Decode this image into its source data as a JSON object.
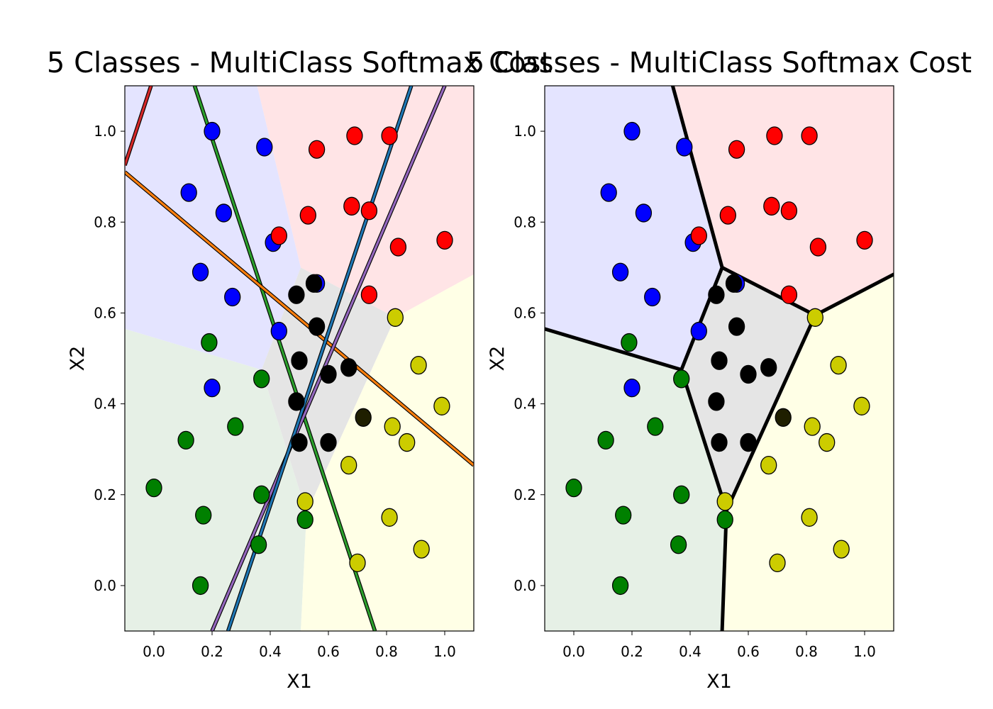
{
  "chart_data": [
    {
      "type": "scatter",
      "title": "5 Classes - MultiClass Softmax Cost",
      "xlabel": "X1",
      "ylabel": "X2",
      "xlim": [
        -0.1,
        1.1
      ],
      "ylim": [
        -0.1,
        1.1
      ],
      "x_ticks": [
        "0.0",
        "0.2",
        "0.4",
        "0.6",
        "0.8",
        "1.0"
      ],
      "y_ticks": [
        "0.0",
        "0.2",
        "0.4",
        "0.6",
        "0.8",
        "1.0"
      ],
      "regions": [
        {
          "class": "blue",
          "fill": "#e4e4ff",
          "polygon": [
            [
              -0.1,
              1.1
            ],
            [
              0.355,
              1.1
            ],
            [
              0.505,
              0.7
            ],
            [
              0.37,
              0.475
            ],
            [
              -0.1,
              0.565
            ]
          ]
        },
        {
          "class": "red",
          "fill": "#ffe4e6",
          "polygon": [
            [
              0.355,
              1.1
            ],
            [
              1.1,
              1.1
            ],
            [
              1.1,
              0.685
            ],
            [
              0.83,
              0.59
            ],
            [
              0.505,
              0.7
            ]
          ]
        },
        {
          "class": "black",
          "fill": "#e5e5e5",
          "polygon": [
            [
              0.505,
              0.7
            ],
            [
              0.83,
              0.59
            ],
            [
              0.525,
              0.16
            ],
            [
              0.37,
              0.475
            ]
          ]
        },
        {
          "class": "green",
          "fill": "#e6f0e6",
          "polygon": [
            [
              -0.1,
              0.565
            ],
            [
              0.37,
              0.475
            ],
            [
              0.525,
              0.16
            ],
            [
              0.505,
              -0.1
            ],
            [
              -0.1,
              -0.1
            ]
          ]
        },
        {
          "class": "yellow",
          "fill": "#ffffe6",
          "polygon": [
            [
              0.83,
              0.59
            ],
            [
              1.1,
              0.685
            ],
            [
              1.1,
              -0.1
            ],
            [
              0.505,
              -0.1
            ],
            [
              0.525,
              0.16
            ]
          ]
        }
      ],
      "boundary_lines": [
        {
          "color": "#2ca02c",
          "points": [
            [
              0.14,
              1.1
            ],
            [
              0.76,
              -0.1
            ]
          ]
        },
        {
          "color": "#ff7f0e",
          "points": [
            [
              -0.1,
              0.91
            ],
            [
              1.1,
              0.265
            ]
          ]
        },
        {
          "color": "#d62728",
          "points": [
            [
              -0.1,
              0.925
            ],
            [
              -0.01,
              1.1
            ]
          ]
        },
        {
          "color": "#9467bd",
          "points": [
            [
              1.0,
              1.1
            ],
            [
              0.2,
              -0.1
            ]
          ]
        },
        {
          "color": "#1f77b4",
          "points": [
            [
              0.885,
              1.1
            ],
            [
              0.255,
              -0.1
            ]
          ]
        }
      ],
      "series": [
        {
          "color": "#0000ff",
          "points": [
            [
              0.2,
              1.0
            ],
            [
              0.38,
              0.965
            ],
            [
              0.12,
              0.865
            ],
            [
              0.24,
              0.82
            ],
            [
              0.41,
              0.755
            ],
            [
              0.16,
              0.69
            ],
            [
              0.27,
              0.635
            ],
            [
              0.43,
              0.56
            ],
            [
              0.56,
              0.665
            ],
            [
              0.2,
              0.435
            ]
          ]
        },
        {
          "color": "#ff0000",
          "points": [
            [
              0.56,
              0.96
            ],
            [
              0.69,
              0.99
            ],
            [
              0.81,
              0.99
            ],
            [
              0.53,
              0.815
            ],
            [
              0.68,
              0.835
            ],
            [
              0.74,
              0.825
            ],
            [
              0.84,
              0.745
            ],
            [
              1.0,
              0.76
            ],
            [
              0.43,
              0.77
            ],
            [
              0.74,
              0.64
            ]
          ]
        },
        {
          "color": "#000000",
          "points": [
            [
              0.49,
              0.64
            ],
            [
              0.55,
              0.665
            ],
            [
              0.56,
              0.57
            ],
            [
              0.5,
              0.495
            ],
            [
              0.6,
              0.465
            ],
            [
              0.67,
              0.48
            ],
            [
              0.49,
              0.405
            ],
            [
              0.5,
              0.315
            ],
            [
              0.6,
              0.315
            ]
          ]
        },
        {
          "color": "#008000",
          "points": [
            [
              0.19,
              0.535
            ],
            [
              0.37,
              0.455
            ],
            [
              0.28,
              0.35
            ],
            [
              0.11,
              0.32
            ],
            [
              0.0,
              0.215
            ],
            [
              0.37,
              0.2
            ],
            [
              0.17,
              0.155
            ],
            [
              0.52,
              0.145
            ],
            [
              0.36,
              0.09
            ],
            [
              0.16,
              0.0
            ]
          ]
        },
        {
          "color": "#cccc00",
          "points": [
            [
              0.83,
              0.59
            ],
            [
              0.91,
              0.485
            ],
            [
              0.99,
              0.395
            ],
            [
              0.82,
              0.35
            ],
            [
              0.87,
              0.315
            ],
            [
              0.67,
              0.265
            ],
            [
              0.52,
              0.185
            ],
            [
              0.81,
              0.15
            ],
            [
              0.92,
              0.08
            ],
            [
              0.7,
              0.05
            ]
          ]
        },
        {
          "color": "#1f1f00",
          "points": [
            [
              0.72,
              0.37
            ]
          ]
        }
      ]
    },
    {
      "type": "scatter",
      "title": "5 Classes - MultiClass Softmax Cost",
      "xlabel": "X1",
      "ylabel": "X2",
      "xlim": [
        -0.1,
        1.1
      ],
      "ylim": [
        -0.1,
        1.1
      ],
      "x_ticks": [
        "0.0",
        "0.2",
        "0.4",
        "0.6",
        "0.8",
        "1.0"
      ],
      "y_ticks": [
        "0.0",
        "0.2",
        "0.4",
        "0.6",
        "0.8",
        "1.0"
      ],
      "regions": [
        {
          "class": "blue",
          "fill": "#e4e4ff",
          "polygon": [
            [
              -0.1,
              1.1
            ],
            [
              0.34,
              1.1
            ],
            [
              0.51,
              0.7
            ],
            [
              0.37,
              0.475
            ],
            [
              -0.1,
              0.565
            ]
          ]
        },
        {
          "class": "red",
          "fill": "#ffe4e6",
          "polygon": [
            [
              0.34,
              1.1
            ],
            [
              1.1,
              1.1
            ],
            [
              1.1,
              0.685
            ],
            [
              0.83,
              0.595
            ],
            [
              0.51,
              0.7
            ]
          ]
        },
        {
          "class": "black",
          "fill": "#e5e5e5",
          "polygon": [
            [
              0.51,
              0.7
            ],
            [
              0.83,
              0.595
            ],
            [
              0.525,
              0.165
            ],
            [
              0.37,
              0.475
            ]
          ]
        },
        {
          "class": "green",
          "fill": "#e6f0e6",
          "polygon": [
            [
              -0.1,
              0.565
            ],
            [
              0.37,
              0.475
            ],
            [
              0.525,
              0.165
            ],
            [
              0.51,
              -0.1
            ],
            [
              -0.1,
              -0.1
            ]
          ]
        },
        {
          "class": "yellow",
          "fill": "#ffffe6",
          "polygon": [
            [
              0.83,
              0.595
            ],
            [
              1.1,
              0.685
            ],
            [
              1.1,
              -0.1
            ],
            [
              0.51,
              -0.1
            ],
            [
              0.525,
              0.165
            ]
          ]
        }
      ],
      "boundary_segments": [
        [
          [
            0.34,
            1.1
          ],
          [
            0.51,
            0.7
          ]
        ],
        [
          [
            0.51,
            0.7
          ],
          [
            0.83,
            0.595
          ]
        ],
        [
          [
            0.83,
            0.595
          ],
          [
            1.1,
            0.685
          ]
        ],
        [
          [
            0.51,
            0.7
          ],
          [
            0.37,
            0.475
          ]
        ],
        [
          [
            0.37,
            0.475
          ],
          [
            -0.1,
            0.565
          ]
        ],
        [
          [
            0.83,
            0.595
          ],
          [
            0.525,
            0.165
          ]
        ],
        [
          [
            0.37,
            0.475
          ],
          [
            0.525,
            0.165
          ]
        ],
        [
          [
            0.525,
            0.165
          ],
          [
            0.51,
            -0.1
          ]
        ]
      ],
      "boundary_color": "#000000",
      "series": [
        {
          "color": "#0000ff",
          "points": [
            [
              0.2,
              1.0
            ],
            [
              0.38,
              0.965
            ],
            [
              0.12,
              0.865
            ],
            [
              0.24,
              0.82
            ],
            [
              0.41,
              0.755
            ],
            [
              0.16,
              0.69
            ],
            [
              0.27,
              0.635
            ],
            [
              0.43,
              0.56
            ],
            [
              0.56,
              0.665
            ],
            [
              0.2,
              0.435
            ]
          ]
        },
        {
          "color": "#ff0000",
          "points": [
            [
              0.56,
              0.96
            ],
            [
              0.69,
              0.99
            ],
            [
              0.81,
              0.99
            ],
            [
              0.53,
              0.815
            ],
            [
              0.68,
              0.835
            ],
            [
              0.74,
              0.825
            ],
            [
              0.84,
              0.745
            ],
            [
              1.0,
              0.76
            ],
            [
              0.43,
              0.77
            ],
            [
              0.74,
              0.64
            ]
          ]
        },
        {
          "color": "#000000",
          "points": [
            [
              0.49,
              0.64
            ],
            [
              0.55,
              0.665
            ],
            [
              0.56,
              0.57
            ],
            [
              0.5,
              0.495
            ],
            [
              0.6,
              0.465
            ],
            [
              0.67,
              0.48
            ],
            [
              0.49,
              0.405
            ],
            [
              0.5,
              0.315
            ],
            [
              0.6,
              0.315
            ]
          ]
        },
        {
          "color": "#008000",
          "points": [
            [
              0.19,
              0.535
            ],
            [
              0.37,
              0.455
            ],
            [
              0.28,
              0.35
            ],
            [
              0.11,
              0.32
            ],
            [
              0.0,
              0.215
            ],
            [
              0.37,
              0.2
            ],
            [
              0.17,
              0.155
            ],
            [
              0.52,
              0.145
            ],
            [
              0.36,
              0.09
            ],
            [
              0.16,
              0.0
            ]
          ]
        },
        {
          "color": "#cccc00",
          "points": [
            [
              0.83,
              0.59
            ],
            [
              0.91,
              0.485
            ],
            [
              0.99,
              0.395
            ],
            [
              0.82,
              0.35
            ],
            [
              0.87,
              0.315
            ],
            [
              0.67,
              0.265
            ],
            [
              0.52,
              0.185
            ],
            [
              0.81,
              0.15
            ],
            [
              0.92,
              0.08
            ],
            [
              0.7,
              0.05
            ]
          ]
        },
        {
          "color": "#1f1f00",
          "points": [
            [
              0.72,
              0.37
            ]
          ]
        }
      ]
    }
  ]
}
